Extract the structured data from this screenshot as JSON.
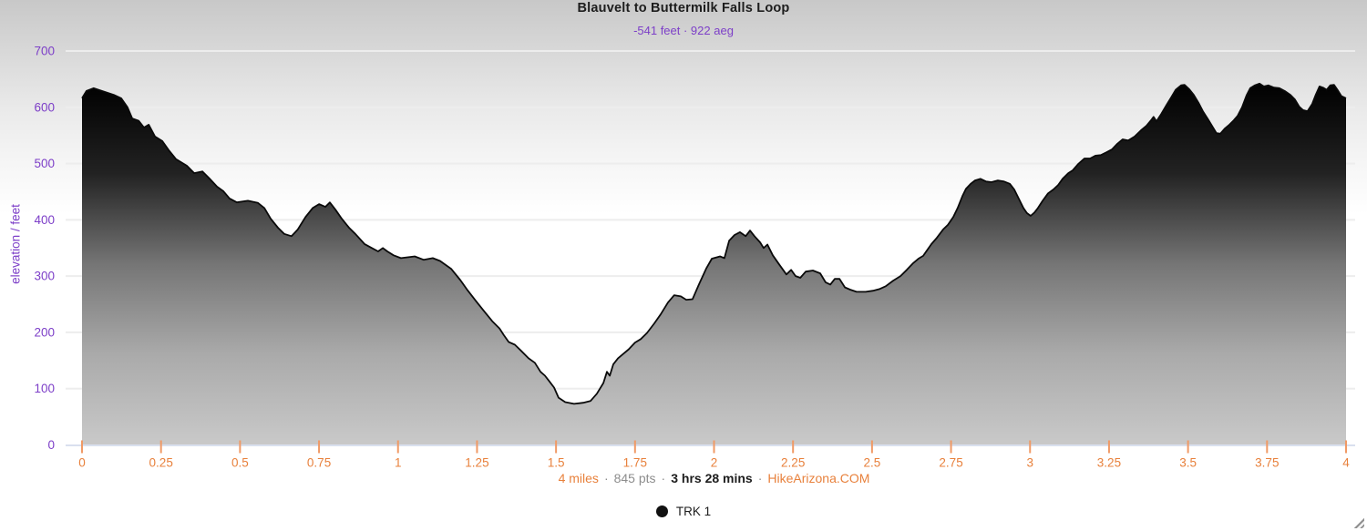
{
  "header": {
    "title": "Blauvelt to Buttermilk Falls Loop",
    "subtitle": "-541 feet · 922 aeg"
  },
  "y_axis": {
    "title": "elevation / feet"
  },
  "footer": {
    "distance": "4 miles",
    "points": "845 pts",
    "duration": "3 hrs 28 mins",
    "site": "HikeArizona.COM",
    "separator": "·"
  },
  "legend": {
    "items": [
      {
        "label": "TRK 1",
        "marker_color": "#111111"
      }
    ]
  },
  "colors": {
    "purple": "#7d3fc8",
    "orange": "#e8813c",
    "tick_orange": "#f09a66",
    "gray_text": "#8d8d8d",
    "dark_text": "#1d1d1d",
    "grid": "#ededed",
    "axis_line": "#d9e0ef",
    "profile_stroke": "#0a0a0a",
    "area_gradient": [
      "#000000",
      "#222222",
      "#757575",
      "#aaaaaa",
      "#c9c9c9"
    ]
  },
  "chart_data": {
    "type": "area",
    "title": "Blauvelt to Buttermilk Falls Loop",
    "xlabel": "",
    "ylabel": "elevation / feet",
    "xlim": [
      0,
      4
    ],
    "ylim": [
      0,
      700
    ],
    "grid": true,
    "legend_position": "bottom",
    "xtick_values": [
      0,
      0.25,
      0.5,
      0.75,
      1,
      1.25,
      1.5,
      1.75,
      2,
      2.25,
      2.5,
      2.75,
      3,
      3.25,
      3.5,
      3.75,
      4
    ],
    "xtick_labels": [
      "0",
      "0.25",
      "0.5",
      "0.75",
      "1",
      "1.25",
      "1.5",
      "1.75",
      "2",
      "2.25",
      "2.5",
      "2.75",
      "3",
      "3.25",
      "3.5",
      "3.75",
      "4"
    ],
    "ytick_values": [
      0,
      100,
      200,
      300,
      400,
      500,
      600,
      700
    ],
    "ytick_labels": [
      "0",
      "100",
      "200",
      "300",
      "400",
      "500",
      "600",
      "700"
    ],
    "series": [
      {
        "name": "TRK 1",
        "color": "#111111",
        "points": [
          [
            0,
            616
          ],
          [
            0.014,
            629
          ],
          [
            0.037,
            634
          ],
          [
            0.063,
            629
          ],
          [
            0.101,
            622
          ],
          [
            0.124,
            616
          ],
          [
            0.144,
            600
          ],
          [
            0.159,
            580
          ],
          [
            0.179,
            576
          ],
          [
            0.196,
            564
          ],
          [
            0.211,
            569
          ],
          [
            0.231,
            548
          ],
          [
            0.254,
            540
          ],
          [
            0.274,
            524
          ],
          [
            0.297,
            508
          ],
          [
            0.332,
            496
          ],
          [
            0.355,
            483
          ],
          [
            0.381,
            486
          ],
          [
            0.404,
            473
          ],
          [
            0.427,
            459
          ],
          [
            0.447,
            451
          ],
          [
            0.467,
            438
          ],
          [
            0.49,
            431
          ],
          [
            0.525,
            434
          ],
          [
            0.557,
            430
          ],
          [
            0.577,
            421
          ],
          [
            0.597,
            402
          ],
          [
            0.62,
            386
          ],
          [
            0.64,
            375
          ],
          [
            0.663,
            371
          ],
          [
            0.683,
            383
          ],
          [
            0.707,
            405
          ],
          [
            0.73,
            421
          ],
          [
            0.75,
            428
          ],
          [
            0.77,
            423
          ],
          [
            0.784,
            431
          ],
          [
            0.802,
            418
          ],
          [
            0.822,
            402
          ],
          [
            0.845,
            386
          ],
          [
            0.865,
            375
          ],
          [
            0.894,
            357
          ],
          [
            0.917,
            350
          ],
          [
            0.937,
            344
          ],
          [
            0.952,
            350
          ],
          [
            0.966,
            344
          ],
          [
            0.986,
            337
          ],
          [
            1.009,
            332
          ],
          [
            1.053,
            335
          ],
          [
            1.081,
            329
          ],
          [
            1.11,
            332
          ],
          [
            1.133,
            327
          ],
          [
            1.168,
            313
          ],
          [
            1.197,
            293
          ],
          [
            1.22,
            275
          ],
          [
            1.246,
            256
          ],
          [
            1.269,
            240
          ],
          [
            1.298,
            220
          ],
          [
            1.321,
            207
          ],
          [
            1.335,
            195
          ],
          [
            1.35,
            183
          ],
          [
            1.37,
            178
          ],
          [
            1.39,
            167
          ],
          [
            1.413,
            154
          ],
          [
            1.433,
            146
          ],
          [
            1.451,
            130
          ],
          [
            1.465,
            123
          ],
          [
            1.479,
            113
          ],
          [
            1.494,
            102
          ],
          [
            1.508,
            84
          ],
          [
            1.529,
            76
          ],
          [
            1.557,
            73
          ],
          [
            1.586,
            75
          ],
          [
            1.609,
            78
          ],
          [
            1.629,
            91
          ],
          [
            1.65,
            110
          ],
          [
            1.661,
            130
          ],
          [
            1.67,
            123
          ],
          [
            1.681,
            143
          ],
          [
            1.696,
            154
          ],
          [
            1.713,
            162
          ],
          [
            1.73,
            170
          ],
          [
            1.75,
            182
          ],
          [
            1.768,
            188
          ],
          [
            1.788,
            199
          ],
          [
            1.811,
            216
          ],
          [
            1.831,
            232
          ],
          [
            1.854,
            253
          ],
          [
            1.874,
            266
          ],
          [
            1.895,
            264
          ],
          [
            1.912,
            258
          ],
          [
            1.932,
            259
          ],
          [
            1.952,
            285
          ],
          [
            1.975,
            313
          ],
          [
            1.993,
            331
          ],
          [
            2.019,
            335
          ],
          [
            2.033,
            332
          ],
          [
            2.048,
            363
          ],
          [
            2.065,
            373
          ],
          [
            2.082,
            378
          ],
          [
            2.1,
            371
          ],
          [
            2.114,
            381
          ],
          [
            2.128,
            371
          ],
          [
            2.146,
            360
          ],
          [
            2.157,
            350
          ],
          [
            2.169,
            356
          ],
          [
            2.186,
            337
          ],
          [
            2.206,
            321
          ],
          [
            2.229,
            303
          ],
          [
            2.244,
            311
          ],
          [
            2.258,
            300
          ],
          [
            2.273,
            297
          ],
          [
            2.29,
            308
          ],
          [
            2.313,
            310
          ],
          [
            2.336,
            305
          ],
          [
            2.353,
            289
          ],
          [
            2.368,
            285
          ],
          [
            2.382,
            295
          ],
          [
            2.397,
            295
          ],
          [
            2.414,
            280
          ],
          [
            2.431,
            276
          ],
          [
            2.451,
            272
          ],
          [
            2.48,
            272
          ],
          [
            2.503,
            274
          ],
          [
            2.523,
            277
          ],
          [
            2.543,
            282
          ],
          [
            2.567,
            292
          ],
          [
            2.59,
            300
          ],
          [
            2.61,
            311
          ],
          [
            2.63,
            323
          ],
          [
            2.647,
            331
          ],
          [
            2.662,
            336
          ],
          [
            2.673,
            345
          ],
          [
            2.688,
            357
          ],
          [
            2.705,
            368
          ],
          [
            2.725,
            383
          ],
          [
            2.74,
            391
          ],
          [
            2.757,
            405
          ],
          [
            2.771,
            421
          ],
          [
            2.786,
            442
          ],
          [
            2.797,
            455
          ],
          [
            2.812,
            464
          ],
          [
            2.826,
            470
          ],
          [
            2.843,
            473
          ],
          [
            2.861,
            468
          ],
          [
            2.878,
            467
          ],
          [
            2.898,
            470
          ],
          [
            2.918,
            468
          ],
          [
            2.936,
            464
          ],
          [
            2.95,
            454
          ],
          [
            2.964,
            438
          ],
          [
            2.979,
            421
          ],
          [
            2.99,
            412
          ],
          [
            3.002,
            407
          ],
          [
            3.014,
            413
          ],
          [
            3.025,
            421
          ],
          [
            3.04,
            434
          ],
          [
            3.057,
            447
          ],
          [
            3.074,
            454
          ],
          [
            3.089,
            462
          ],
          [
            3.103,
            473
          ],
          [
            3.121,
            483
          ],
          [
            3.135,
            488
          ],
          [
            3.152,
            499
          ],
          [
            3.172,
            509
          ],
          [
            3.19,
            509
          ],
          [
            3.207,
            514
          ],
          [
            3.224,
            515
          ],
          [
            3.242,
            520
          ],
          [
            3.259,
            525
          ],
          [
            3.276,
            535
          ],
          [
            3.293,
            543
          ],
          [
            3.311,
            541
          ],
          [
            3.331,
            548
          ],
          [
            3.351,
            559
          ],
          [
            3.368,
            567
          ],
          [
            3.383,
            577
          ],
          [
            3.391,
            583
          ],
          [
            3.4,
            575
          ],
          [
            3.415,
            588
          ],
          [
            3.432,
            604
          ],
          [
            3.446,
            617
          ],
          [
            3.461,
            631
          ],
          [
            3.478,
            639
          ],
          [
            3.489,
            640
          ],
          [
            3.504,
            632
          ],
          [
            3.518,
            622
          ],
          [
            3.533,
            608
          ],
          [
            3.547,
            593
          ],
          [
            3.564,
            578
          ],
          [
            3.579,
            564
          ],
          [
            3.59,
            554
          ],
          [
            3.602,
            553
          ],
          [
            3.616,
            562
          ],
          [
            3.631,
            569
          ],
          [
            3.645,
            577
          ],
          [
            3.657,
            585
          ],
          [
            3.671,
            600
          ],
          [
            3.685,
            621
          ],
          [
            3.697,
            634
          ],
          [
            3.711,
            639
          ],
          [
            3.726,
            642
          ],
          [
            3.74,
            637
          ],
          [
            3.754,
            639
          ],
          [
            3.772,
            635
          ],
          [
            3.789,
            634
          ],
          [
            3.806,
            629
          ],
          [
            3.824,
            622
          ],
          [
            3.838,
            614
          ],
          [
            3.852,
            601
          ],
          [
            3.864,
            595
          ],
          [
            3.878,
            593
          ],
          [
            3.893,
            606
          ],
          [
            3.904,
            622
          ],
          [
            3.916,
            637
          ],
          [
            3.927,
            635
          ],
          [
            3.939,
            631
          ],
          [
            3.95,
            639
          ],
          [
            3.962,
            640
          ],
          [
            3.973,
            631
          ],
          [
            3.985,
            620
          ],
          [
            4,
            616
          ]
        ]
      }
    ]
  }
}
